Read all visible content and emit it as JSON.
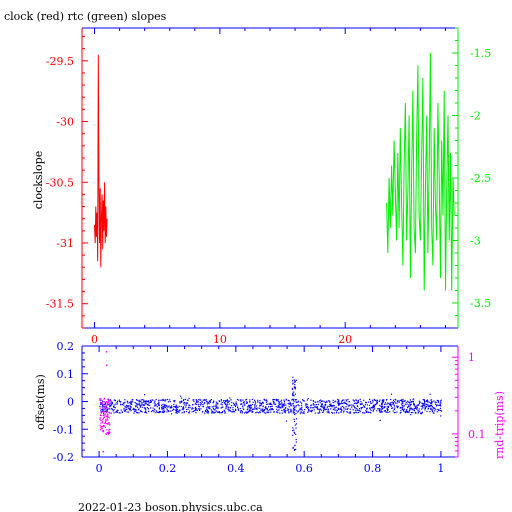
{
  "title": "clock (red) rtc (green) slopes",
  "footer": "2022-01-23  boson.physics.ubc.ca",
  "colors": {
    "red": "#ff0000",
    "green": "#00ee00",
    "blue": "#0000ff",
    "magenta": "#ff00ff",
    "axis": "#000000"
  },
  "chart_data": [
    {
      "type": "line",
      "title": "clock (red) rtc (green) slopes",
      "xlim": [
        -1,
        29
      ],
      "x_ticks": [
        0,
        10,
        20
      ],
      "y_left": {
        "label": "clockslope",
        "ylim": [
          -31.7,
          -29.23
        ],
        "ticks": [
          -29.5,
          -30,
          -30.5,
          -31,
          -31.5
        ],
        "tick_labels": [
          "-29.5",
          "-30",
          "-30.5",
          "-31",
          "-31.5"
        ]
      },
      "y_right": {
        "ylim": [
          -3.5,
          -1.5
        ],
        "ticks": [
          -1.5,
          -2,
          -2.5,
          -3,
          -3.5
        ],
        "tick_labels": [
          "-1.5",
          "-2",
          "-2.5",
          "-3",
          "-3.5"
        ]
      },
      "series": [
        {
          "color": "red",
          "axis": "left",
          "x": [
            0.0,
            0.05,
            0.1,
            0.15,
            0.2,
            0.25,
            0.3,
            0.35,
            0.4,
            0.45,
            0.5,
            0.55,
            0.6,
            0.65,
            0.7,
            0.75,
            0.8,
            0.85,
            0.9,
            0.95,
            1.0
          ],
          "y": [
            -30.85,
            -31.0,
            -30.7,
            -30.95,
            -30.75,
            -31.15,
            -29.45,
            -30.45,
            -31.0,
            -30.55,
            -31.2,
            -30.8,
            -30.6,
            -31.05,
            -30.65,
            -30.9,
            -30.5,
            -31.0,
            -30.7,
            -30.95,
            -30.8
          ]
        },
        {
          "color": "green",
          "axis": "right",
          "x": [
            23.3,
            23.4,
            23.5,
            23.6,
            23.7,
            23.8,
            23.9,
            24.0,
            24.1,
            24.2,
            24.3,
            24.4,
            24.5,
            24.6,
            24.7,
            24.8,
            24.9,
            25.0,
            25.1,
            25.2,
            25.3,
            25.4,
            25.5,
            25.6,
            25.7,
            25.8,
            25.9,
            26.0,
            26.1,
            26.2,
            26.3,
            26.4,
            26.5,
            26.6,
            26.7,
            26.8,
            26.9,
            27.0,
            27.1,
            27.2,
            27.3,
            27.4,
            27.5,
            27.6,
            27.7,
            27.8,
            27.9,
            28.0,
            28.1,
            28.2,
            28.3,
            28.4,
            28.5,
            28.6,
            28.7
          ],
          "y": [
            -2.7,
            -3.1,
            -2.5,
            -2.9,
            -2.4,
            -2.8,
            -2.2,
            -2.6,
            -3.0,
            -2.3,
            -2.9,
            -2.1,
            -2.7,
            -3.2,
            -2.4,
            -1.9,
            -3.0,
            -2.6,
            -2.0,
            -3.3,
            -2.5,
            -1.8,
            -2.9,
            -3.1,
            -2.2,
            -1.6,
            -2.8,
            -3.0,
            -2.3,
            -1.7,
            -3.4,
            -2.6,
            -2.0,
            -3.1,
            -2.4,
            -1.5,
            -2.9,
            -3.2,
            -2.1,
            -2.7,
            -3.0,
            -1.9,
            -2.5,
            -3.3,
            -2.2,
            -2.8,
            -1.8,
            -3.4,
            -2.6,
            -2.0,
            -3.0,
            -2.3,
            -3.4,
            -2.5,
            -2.8
          ]
        }
      ]
    },
    {
      "type": "scatter",
      "xlim": [
        -0.05,
        1.05
      ],
      "x_ticks": [
        0,
        0.2,
        0.4,
        0.6,
        0.8,
        1
      ],
      "x_tick_labels": [
        "0",
        "0.2",
        "0.4",
        "0.6",
        "0.8",
        "1"
      ],
      "y_left": {
        "label": "offset(ms)",
        "ylim": [
          -0.2,
          0.2
        ],
        "ticks": [
          0.2,
          0.1,
          0,
          -0.1,
          -0.2
        ],
        "tick_labels": [
          "0.2",
          "0.1",
          "0",
          "-0.1",
          "-0.2"
        ]
      },
      "y_right": {
        "label": "rnd-trip(ms)",
        "scale": "log",
        "ylim": [
          0.05,
          1.4
        ],
        "ticks": [
          1,
          0.1
        ],
        "tick_labels": [
          "1",
          "0.1"
        ]
      },
      "series": [
        {
          "color": "blue",
          "axis": "left",
          "band_center": -0.015,
          "band_halfwidth": 0.025,
          "x_range": [
            0,
            1
          ],
          "spike_x": 0.57,
          "spike_y_range": [
            -0.18,
            0.09
          ]
        },
        {
          "color": "magenta",
          "axis": "right",
          "x_range": [
            0,
            0.03
          ],
          "y_range": [
            0.1,
            0.3
          ],
          "outliers": [
            [
              0.02,
              0.8
            ],
            [
              0.02,
              1.2
            ],
            [
              0.01,
              0.06
            ]
          ]
        }
      ]
    }
  ]
}
